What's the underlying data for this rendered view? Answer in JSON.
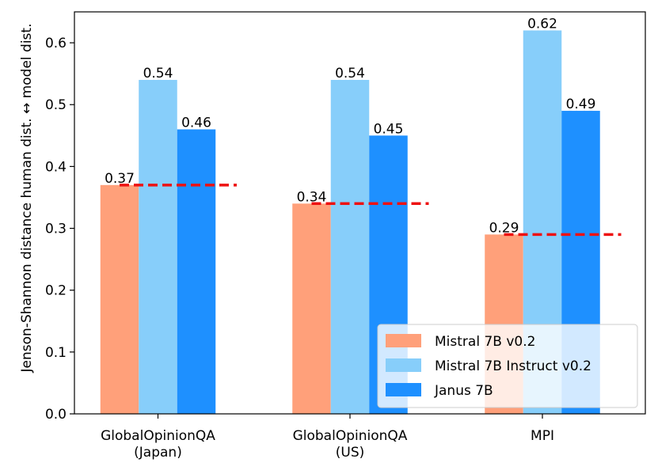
{
  "chart_data": {
    "type": "bar",
    "title": "",
    "xlabel": "",
    "ylabel": "Jenson-Shannon distance human dist. ↔ model dist.",
    "categories": [
      [
        "GlobalOpinionQA",
        "(Japan)"
      ],
      [
        "GlobalOpinionQA",
        "(US)"
      ],
      [
        "MPI"
      ]
    ],
    "series": [
      {
        "name": "Mistral 7B v0.2",
        "color": "#FFA07A",
        "values": [
          0.37,
          0.34,
          0.29
        ]
      },
      {
        "name": "Mistral 7B Instruct v0.2",
        "color": "#87CEFA",
        "values": [
          0.54,
          0.54,
          0.62
        ]
      },
      {
        "name": "Janus 7B",
        "color": "#1E90FF",
        "values": [
          0.46,
          0.45,
          0.49
        ]
      }
    ],
    "data_labels": [
      [
        "0.37",
        "0.54",
        "0.46"
      ],
      [
        "0.34",
        "0.54",
        "0.45"
      ],
      [
        "0.29",
        "0.62",
        "0.49"
      ]
    ],
    "reference_lines": {
      "color": "#EE1111",
      "style": "dashed",
      "values": [
        0.37,
        0.34,
        0.29
      ]
    },
    "ylim": [
      0,
      0.65
    ],
    "yticks": [
      "0.0",
      "0.1",
      "0.2",
      "0.3",
      "0.4",
      "0.5",
      "0.6"
    ],
    "legend_position": "bottom-right",
    "grid": false
  }
}
